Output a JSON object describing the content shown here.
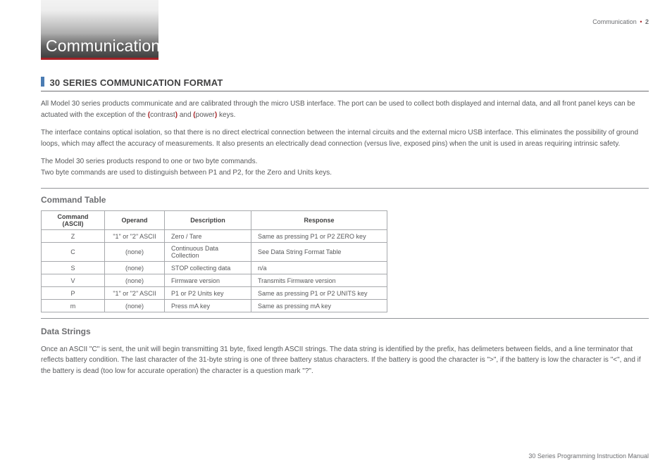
{
  "page_header": {
    "section": "Communication",
    "page_num": "2"
  },
  "banner": {
    "title": "Communication"
  },
  "section": {
    "title": "30 SERIES COMMUNICATION FORMAT"
  },
  "para1": {
    "a": "All Model 30 series products communicate and are calibrated through the micro USB interface. The port can be used to collect both displayed and internal data, and all front panel keys can be actuated with the exception of the ",
    "k1": "contrast",
    "b": " and ",
    "k2": "power",
    "c": " keys."
  },
  "para2": "The interface contains optical isolation, so that there is no direct electrical connection between the internal circuits and the external micro USB interface. This eliminates the possibility of ground loops, which may affect the accuracy of measurements. It also presents an electrically dead connection (versus live, exposed pins) when the unit is used in areas requiring intrinsic safety.",
  "para3a": "The Model 30 series products respond to one or two byte commands.",
  "para3b": "Two byte commands are used to distinguish between P1 and P2, for the Zero and Units keys.",
  "command_table": {
    "heading": "Command Table",
    "columns": [
      "Command (ASCII)",
      "Operand",
      "Description",
      "Response"
    ],
    "rows": [
      [
        "Z",
        "\"1\" or \"2\" ASCII",
        "Zero / Tare",
        "Same as pressing P1 or P2 ZERO key"
      ],
      [
        "C",
        "(none)",
        "Continuous Data Collection",
        "See Data String Format Table"
      ],
      [
        "S",
        "(none)",
        "STOP collecting data",
        "n/a"
      ],
      [
        "V",
        "(none)",
        "Firmware version",
        "Transmits Firmware version"
      ],
      [
        "P",
        "\"1\" or \"2\" ASCII",
        "P1 or P2 Units key",
        "Same as pressing P1 or P2 UNITS key"
      ],
      [
        "m",
        "(none)",
        "Press mA key",
        "Same as pressing mA key"
      ]
    ]
  },
  "data_strings": {
    "heading": "Data Strings",
    "text": "Once an ASCII \"C\" is sent, the unit will begin transmitting 31 byte, fixed length ASCII strings. The data string is identified by the prefix, has delimeters between fields, and a line terminator that reflects battery condition. The last character of the 31-byte string is one of three battery status characters. If the battery is good the character is \">\", if the battery is low the character is \"<\", and if the battery is dead (too low for accurate operation) the character is a question mark \"?\"."
  },
  "footer": "30 Series Programming Instruction Manual",
  "colors": {
    "accent_red": "#a72126",
    "accent_blue": "#4b7cb3",
    "text_body": "#58595b",
    "text_dark": "#404041",
    "text_muted": "#6d6e71",
    "rule": "#939598",
    "table_border": "#a7a9ac"
  }
}
